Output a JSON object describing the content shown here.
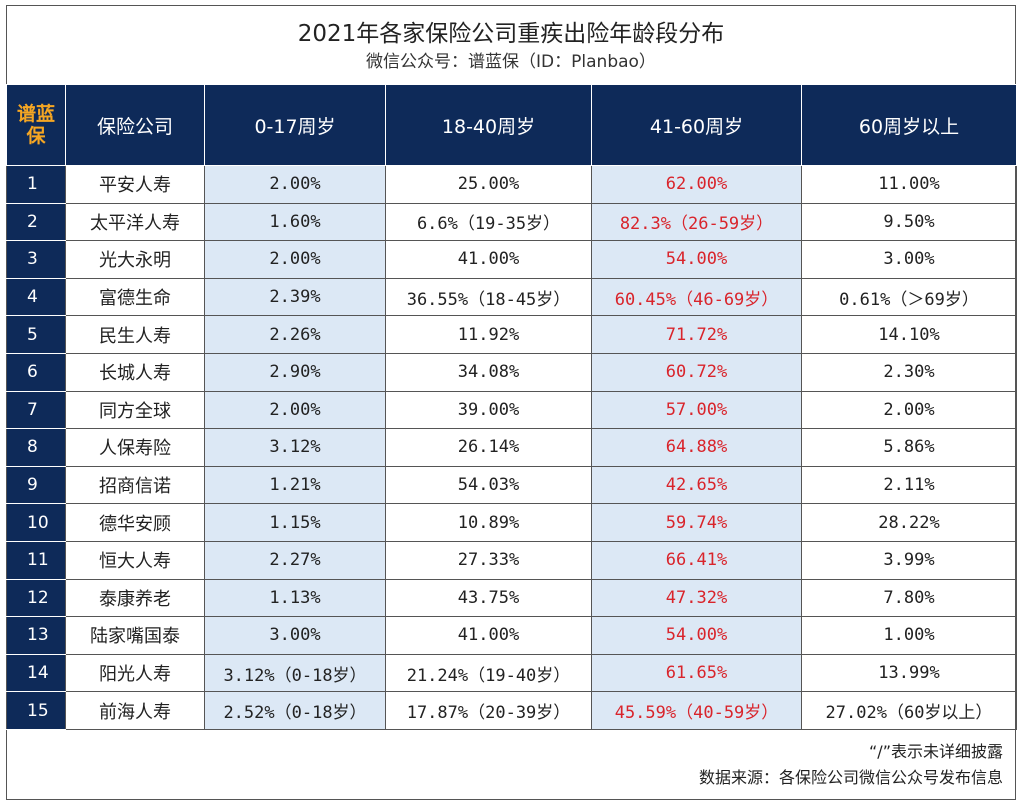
{
  "title": "2021年各家保险公司重疾出险年龄段分布",
  "subtitle": "微信公众号：谱蓝保（ID：Planbao）",
  "header": {
    "brand": "谱蓝保",
    "company": "保险公司",
    "age_0_17": "0-17周岁",
    "age_18_40": "18-40周岁",
    "age_41_60": "41-60周岁",
    "age_60_plus": "60周岁以上"
  },
  "rows": [
    {
      "no": "1",
      "company": "平安人寿",
      "a": "2.00%",
      "b": "25.00%",
      "c": "62.00%",
      "d": "11.00%"
    },
    {
      "no": "2",
      "company": "太平洋人寿",
      "a": "1.60%",
      "b": "6.6%（19-35岁）",
      "c": "82.3%（26-59岁）",
      "d": "9.50%"
    },
    {
      "no": "3",
      "company": "光大永明",
      "a": "2.00%",
      "b": "41.00%",
      "c": "54.00%",
      "d": "3.00%"
    },
    {
      "no": "4",
      "company": "富德生命",
      "a": "2.39%",
      "b": "36.55%（18-45岁）",
      "c": "60.45%（46-69岁）",
      "d": "0.61%（＞69岁）"
    },
    {
      "no": "5",
      "company": "民生人寿",
      "a": "2.26%",
      "b": "11.92%",
      "c": "71.72%",
      "d": "14.10%"
    },
    {
      "no": "6",
      "company": "长城人寿",
      "a": "2.90%",
      "b": "34.08%",
      "c": "60.72%",
      "d": "2.30%"
    },
    {
      "no": "7",
      "company": "同方全球",
      "a": "2.00%",
      "b": "39.00%",
      "c": "57.00%",
      "d": "2.00%"
    },
    {
      "no": "8",
      "company": "人保寿险",
      "a": "3.12%",
      "b": "26.14%",
      "c": "64.88%",
      "d": "5.86%"
    },
    {
      "no": "9",
      "company": "招商信诺",
      "a": "1.21%",
      "b": "54.03%",
      "c": "42.65%",
      "d": "2.11%"
    },
    {
      "no": "10",
      "company": "德华安顾",
      "a": "1.15%",
      "b": "10.89%",
      "c": "59.74%",
      "d": "28.22%"
    },
    {
      "no": "11",
      "company": "恒大人寿",
      "a": "2.27%",
      "b": "27.33%",
      "c": "66.41%",
      "d": "3.99%"
    },
    {
      "no": "12",
      "company": "泰康养老",
      "a": "1.13%",
      "b": "43.75%",
      "c": "47.32%",
      "d": "7.80%"
    },
    {
      "no": "13",
      "company": "陆家嘴国泰",
      "a": "3.00%",
      "b": "41.00%",
      "c": "54.00%",
      "d": "1.00%"
    },
    {
      "no": "14",
      "company": "阳光人寿",
      "a": "3.12%（0-18岁）",
      "b": "21.24%（19-40岁）",
      "c": "61.65%",
      "d": "13.99%"
    },
    {
      "no": "15",
      "company": "前海人寿",
      "a": "2.52%（0-18岁）",
      "b": "17.87%（20-39岁）",
      "c": "45.59%（40-59岁）",
      "d": "27.02%（60岁以上）"
    }
  ],
  "footer": {
    "note": "“/”表示未详细披露",
    "source": "数据来源：各保险公司微信公众号发布信息"
  },
  "colors": {
    "header_bg": "#0e2a59",
    "brand_text": "#f5a623",
    "shade": "#dce8f5",
    "highlight_red": "#d9242b"
  }
}
